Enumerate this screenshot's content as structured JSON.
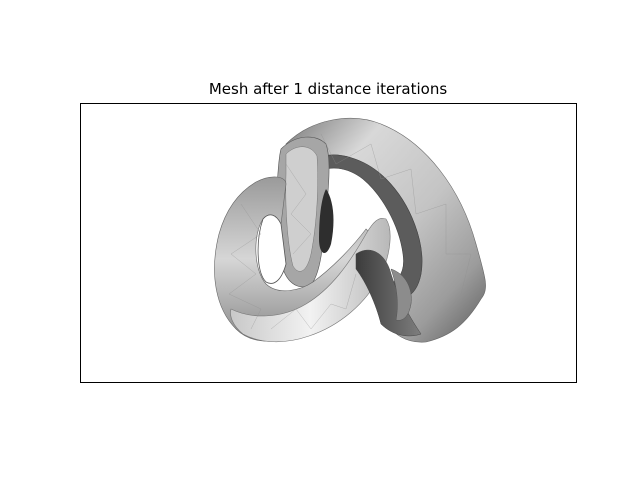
{
  "figure": {
    "title": "Mesh after 1 distance iterations"
  },
  "colors": {
    "background": "#ffffff",
    "frame": "#000000",
    "mesh_light": "#e6e6e6",
    "mesh_mid": "#b4b4b4",
    "mesh_dark": "#4a4a4a"
  },
  "image": {
    "subject": "shaded triangulated knot-shaped tube surface rendered in grayscale"
  }
}
